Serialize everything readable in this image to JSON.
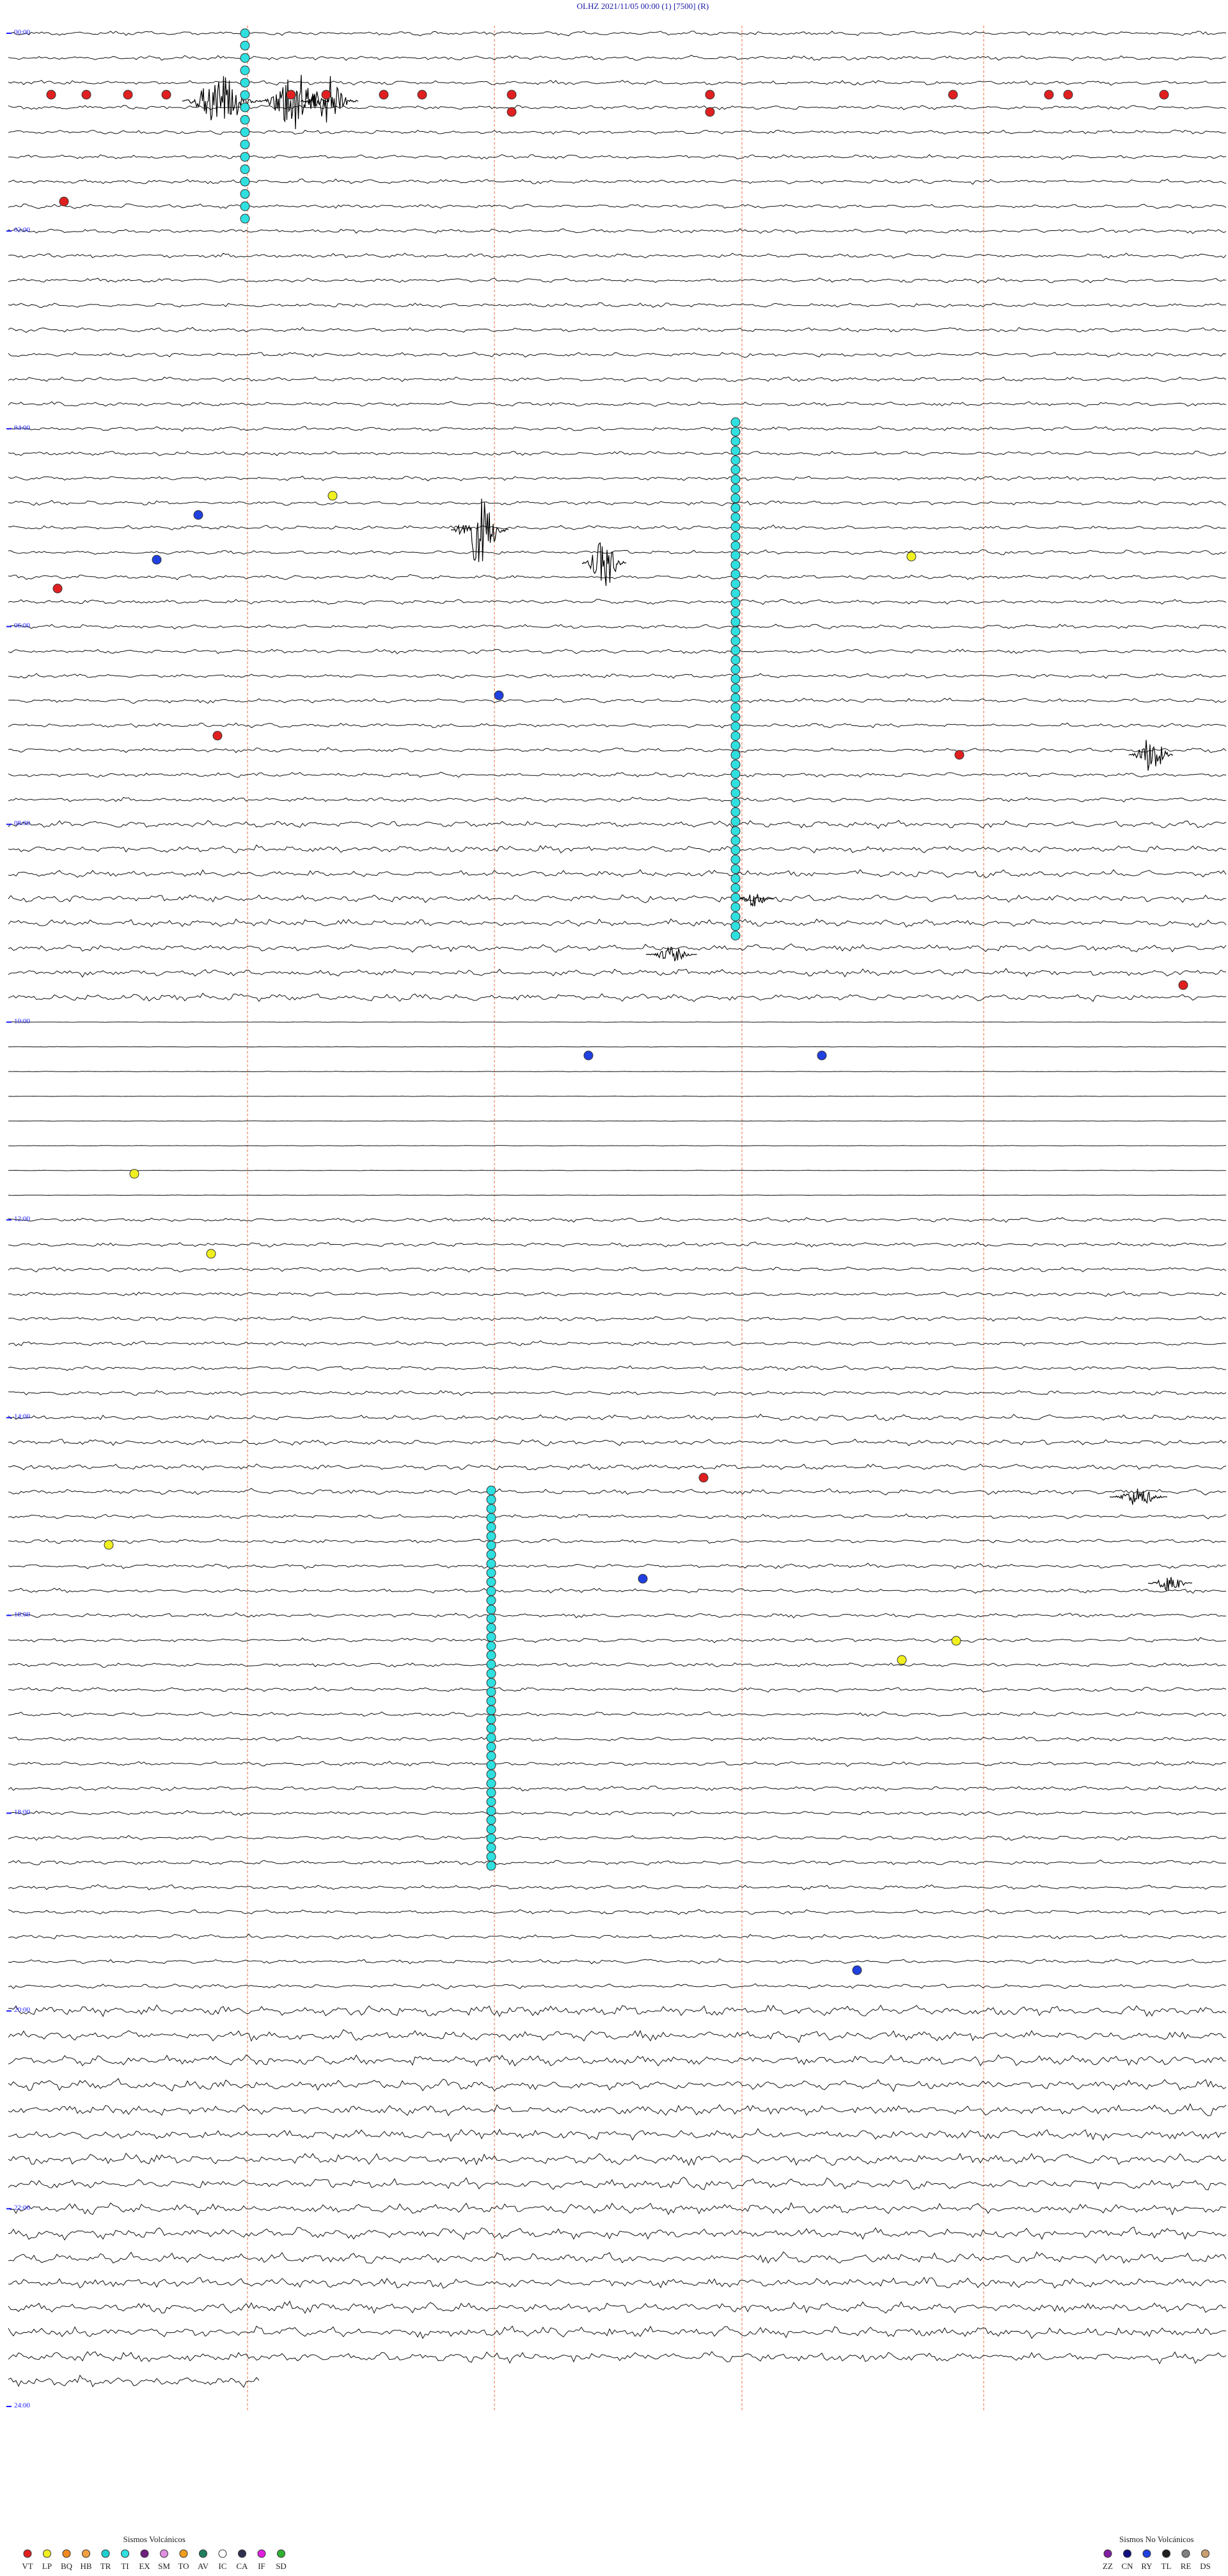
{
  "header": {
    "title": "OLHZ    2021/11/05 00:00    (1)    [7500]  (R)"
  },
  "time_labels": [
    "00:00",
    "02:00",
    "04:00",
    "06:00",
    "08:00",
    "10:00",
    "12:00",
    "14:00",
    "16:00",
    "18:00",
    "20:00",
    "22:00",
    "24:00"
  ],
  "legend_volcanic": {
    "title": "Sismos Volcánicos",
    "entries": [
      {
        "code": "VT",
        "color": "#e02020"
      },
      {
        "code": "LP",
        "color": "#f0f020"
      },
      {
        "code": "BQ",
        "color": "#f08a20"
      },
      {
        "code": "HB",
        "color": "#f0a040"
      },
      {
        "code": "TR",
        "color": "#20d0d0"
      },
      {
        "code": "TI",
        "color": "#30e0e0"
      },
      {
        "code": "EX",
        "color": "#702080"
      },
      {
        "code": "SM",
        "color": "#e090e0"
      },
      {
        "code": "TO",
        "color": "#f0a020"
      },
      {
        "code": "AV",
        "color": "#208060"
      },
      {
        "code": "IC",
        "color": "#ffffff"
      },
      {
        "code": "CA",
        "color": "#303050"
      },
      {
        "code": "IF",
        "color": "#e020e0"
      },
      {
        "code": "SD",
        "color": "#30b030"
      }
    ]
  },
  "legend_nonvolcanic": {
    "title": "Sismos No Volcánicos",
    "entries": [
      {
        "code": "ZZ",
        "color": "#8020a0"
      },
      {
        "code": "CN",
        "color": "#101080"
      },
      {
        "code": "RY",
        "color": "#2040e0"
      },
      {
        "code": "TL",
        "color": "#202020"
      },
      {
        "code": "RE",
        "color": "#808080"
      },
      {
        "code": "DS",
        "color": "#c8a070"
      }
    ]
  }
}
